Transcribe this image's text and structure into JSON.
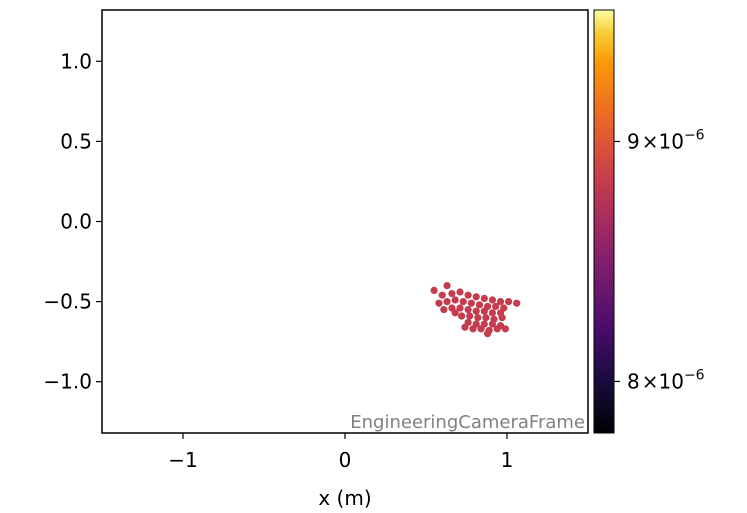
{
  "chart_data": {
    "type": "scatter",
    "title": "",
    "xlabel": "x  (m)",
    "ylabel": "",
    "xlim": [
      -1.5,
      1.5
    ],
    "ylim": [
      -1.32,
      1.32
    ],
    "xticks": [
      -1,
      0,
      1
    ],
    "xtick_labels": [
      "−1",
      "0",
      "1"
    ],
    "yticks": [
      1.0,
      0.5,
      0.0,
      -0.5,
      -1.0
    ],
    "ytick_labels": [
      "1.0",
      "0.5",
      "0.0",
      "−0.5",
      "−1.0"
    ],
    "annotation": "EngineeringCameraFrame",
    "grid": false,
    "colorbar": {
      "colormap": "inferno",
      "scale": "log",
      "range": [
        7.8e-06,
        9.6e-06
      ],
      "ticks": [
        {
          "value": 9e-06,
          "mantissa": "9",
          "base": "×10",
          "exponent": "−6"
        },
        {
          "value": 8e-06,
          "mantissa": "8",
          "base": "×10",
          "exponent": "−6"
        }
      ]
    },
    "point_color": "#c43c4e",
    "points": [
      [
        0.55,
        -0.43
      ],
      [
        0.63,
        -0.4
      ],
      [
        0.6,
        -0.46
      ],
      [
        0.66,
        -0.45
      ],
      [
        0.71,
        -0.44
      ],
      [
        0.76,
        -0.46
      ],
      [
        0.81,
        -0.47
      ],
      [
        0.86,
        -0.48
      ],
      [
        0.91,
        -0.49
      ],
      [
        0.96,
        -0.5
      ],
      [
        1.01,
        -0.5
      ],
      [
        1.06,
        -0.51
      ],
      [
        0.58,
        -0.51
      ],
      [
        0.63,
        -0.5
      ],
      [
        0.68,
        -0.49
      ],
      [
        0.73,
        -0.5
      ],
      [
        0.78,
        -0.51
      ],
      [
        0.83,
        -0.52
      ],
      [
        0.88,
        -0.53
      ],
      [
        0.93,
        -0.53
      ],
      [
        0.98,
        -0.54
      ],
      [
        0.61,
        -0.55
      ],
      [
        0.66,
        -0.54
      ],
      [
        0.71,
        -0.54
      ],
      [
        0.76,
        -0.55
      ],
      [
        0.81,
        -0.56
      ],
      [
        0.86,
        -0.56
      ],
      [
        0.91,
        -0.57
      ],
      [
        0.96,
        -0.57
      ],
      [
        0.72,
        -0.59
      ],
      [
        0.77,
        -0.59
      ],
      [
        0.82,
        -0.6
      ],
      [
        0.87,
        -0.6
      ],
      [
        0.92,
        -0.61
      ],
      [
        0.97,
        -0.6
      ],
      [
        0.76,
        -0.63
      ],
      [
        0.81,
        -0.64
      ],
      [
        0.86,
        -0.64
      ],
      [
        0.91,
        -0.64
      ],
      [
        0.96,
        -0.65
      ],
      [
        0.79,
        -0.67
      ],
      [
        0.84,
        -0.67
      ],
      [
        0.89,
        -0.68
      ],
      [
        0.94,
        -0.67
      ],
      [
        0.99,
        -0.67
      ],
      [
        0.88,
        -0.7
      ],
      [
        0.74,
        -0.66
      ],
      [
        0.68,
        -0.57
      ]
    ]
  }
}
